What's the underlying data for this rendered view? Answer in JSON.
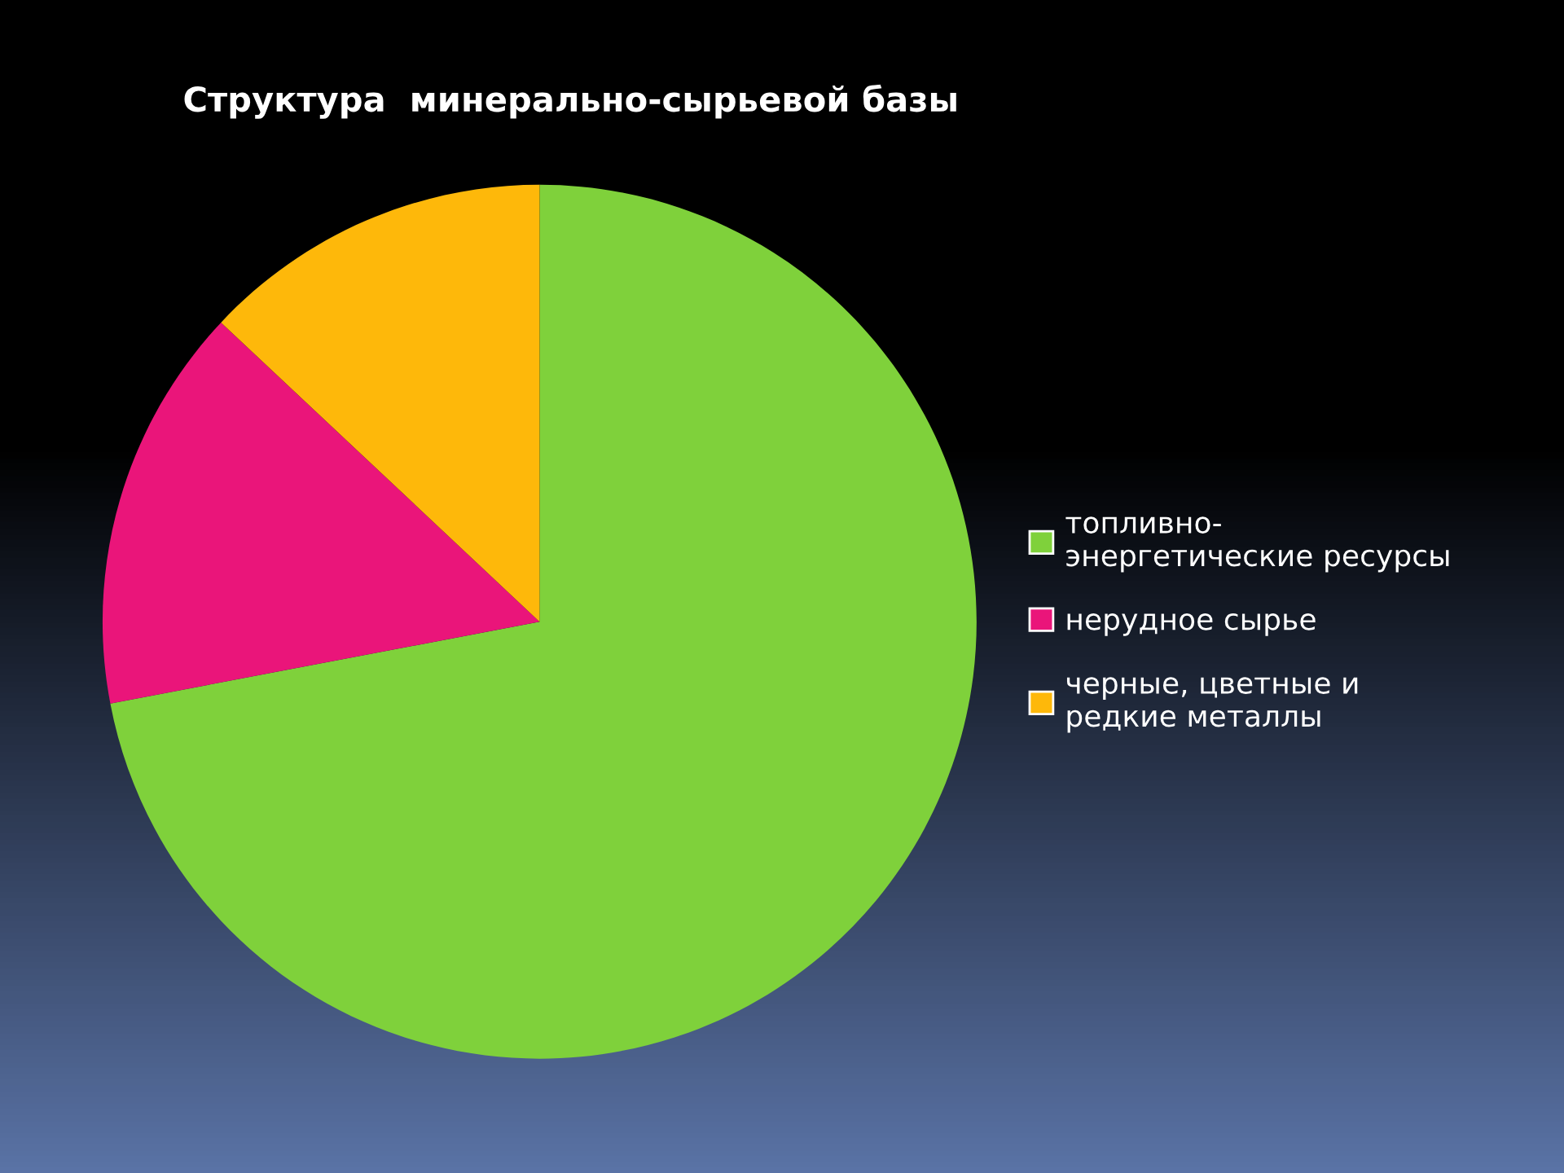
{
  "chart_data": {
    "type": "pie",
    "title": "Структура  минерально-сырьевой базы",
    "categories": [
      "топливно-\nэнергетические ресурсы",
      "нерудное сырье",
      "черные, цветные и\nредкие металлы"
    ],
    "values": [
      72,
      15,
      13
    ],
    "colors": [
      "#7fd13b",
      "#ea157a",
      "#feb80a"
    ],
    "legend": "right"
  }
}
